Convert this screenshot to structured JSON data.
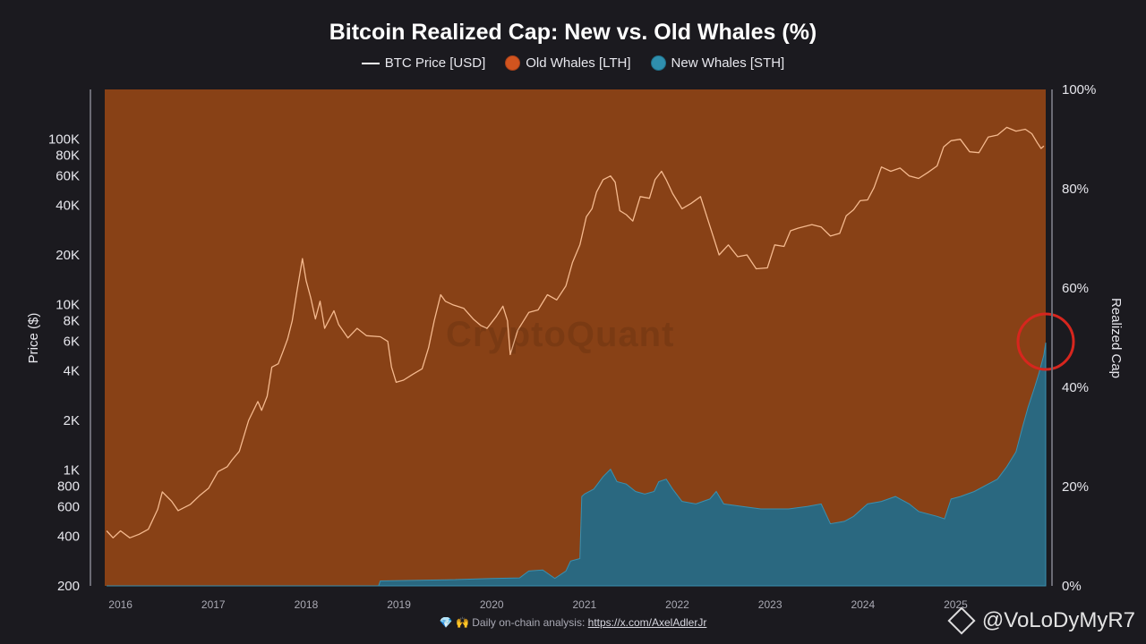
{
  "chart_data": {
    "type": "area",
    "title": "Bitcoin Realized Cap: New vs. Old Whales (%)",
    "legend": [
      {
        "label": "BTC Price [USD]",
        "kind": "line",
        "color": "#ffffff"
      },
      {
        "label": "Old Whales [LTH]",
        "kind": "dot",
        "color": "#d2541f"
      },
      {
        "label": "New Whales [STH]",
        "kind": "dot",
        "color": "#2f8fae"
      }
    ],
    "legend_position": "top-center",
    "ylabel_left": "Price ($)",
    "ylabel_right": "Realized Cap",
    "y_left_scale": "log",
    "y_left_range": [
      200,
      200000
    ],
    "y_left_ticks": [
      {
        "v": 200,
        "label": "200"
      },
      {
        "v": 400,
        "label": "400"
      },
      {
        "v": 600,
        "label": "600"
      },
      {
        "v": 800,
        "label": "800"
      },
      {
        "v": 1000,
        "label": "1K"
      },
      {
        "v": 2000,
        "label": "2K"
      },
      {
        "v": 4000,
        "label": "4K"
      },
      {
        "v": 6000,
        "label": "6K"
      },
      {
        "v": 8000,
        "label": "8K"
      },
      {
        "v": 10000,
        "label": "10K"
      },
      {
        "v": 20000,
        "label": "20K"
      },
      {
        "v": 40000,
        "label": "40K"
      },
      {
        "v": 60000,
        "label": "60K"
      },
      {
        "v": 80000,
        "label": "80K"
      },
      {
        "v": 100000,
        "label": "100K"
      }
    ],
    "y_right_range": [
      0,
      100
    ],
    "y_right_ticks": [
      {
        "v": 0,
        "label": "0%"
      },
      {
        "v": 20,
        "label": "20%"
      },
      {
        "v": 40,
        "label": "40%"
      },
      {
        "v": 60,
        "label": "60%"
      },
      {
        "v": 80,
        "label": "80%"
      },
      {
        "v": 100,
        "label": "100%"
      }
    ],
    "x_range": [
      2015.83,
      2025.97
    ],
    "x_ticks": [
      "2016",
      "2017",
      "2018",
      "2019",
      "2020",
      "2021",
      "2022",
      "2023",
      "2024",
      "2025"
    ],
    "grid": false,
    "series": [
      {
        "name": "BTC Price [USD]",
        "color": "#f5b98e",
        "axis": "left",
        "points": [
          [
            2015.85,
            430
          ],
          [
            2015.92,
            390
          ],
          [
            2016.0,
            430
          ],
          [
            2016.1,
            390
          ],
          [
            2016.2,
            410
          ],
          [
            2016.3,
            440
          ],
          [
            2016.4,
            580
          ],
          [
            2016.45,
            740
          ],
          [
            2016.55,
            650
          ],
          [
            2016.62,
            570
          ],
          [
            2016.75,
            620
          ],
          [
            2016.85,
            700
          ],
          [
            2016.95,
            780
          ],
          [
            2017.05,
            980
          ],
          [
            2017.15,
            1050
          ],
          [
            2017.2,
            1150
          ],
          [
            2017.28,
            1300
          ],
          [
            2017.38,
            2000
          ],
          [
            2017.48,
            2600
          ],
          [
            2017.52,
            2300
          ],
          [
            2017.58,
            2800
          ],
          [
            2017.63,
            4200
          ],
          [
            2017.7,
            4400
          ],
          [
            2017.75,
            5200
          ],
          [
            2017.8,
            6200
          ],
          [
            2017.85,
            8000
          ],
          [
            2017.9,
            12000
          ],
          [
            2017.96,
            19000
          ],
          [
            2018.0,
            14000
          ],
          [
            2018.05,
            11000
          ],
          [
            2018.1,
            8200
          ],
          [
            2018.15,
            10500
          ],
          [
            2018.2,
            7200
          ],
          [
            2018.3,
            9200
          ],
          [
            2018.35,
            7600
          ],
          [
            2018.45,
            6300
          ],
          [
            2018.55,
            7200
          ],
          [
            2018.65,
            6500
          ],
          [
            2018.8,
            6400
          ],
          [
            2018.88,
            6000
          ],
          [
            2018.92,
            4200
          ],
          [
            2018.97,
            3400
          ],
          [
            2019.05,
            3500
          ],
          [
            2019.15,
            3800
          ],
          [
            2019.25,
            4100
          ],
          [
            2019.32,
            5500
          ],
          [
            2019.38,
            8000
          ],
          [
            2019.45,
            11500
          ],
          [
            2019.5,
            10500
          ],
          [
            2019.58,
            10000
          ],
          [
            2019.7,
            9500
          ],
          [
            2019.8,
            8200
          ],
          [
            2019.88,
            7500
          ],
          [
            2019.95,
            7200
          ],
          [
            2020.05,
            8500
          ],
          [
            2020.12,
            9800
          ],
          [
            2020.17,
            8000
          ],
          [
            2020.2,
            5000
          ],
          [
            2020.28,
            7000
          ],
          [
            2020.4,
            9000
          ],
          [
            2020.5,
            9300
          ],
          [
            2020.6,
            11500
          ],
          [
            2020.7,
            10700
          ],
          [
            2020.8,
            13000
          ],
          [
            2020.87,
            18000
          ],
          [
            2020.95,
            23000
          ],
          [
            2021.02,
            34000
          ],
          [
            2021.08,
            38000
          ],
          [
            2021.13,
            48000
          ],
          [
            2021.2,
            57000
          ],
          [
            2021.28,
            60000
          ],
          [
            2021.33,
            55000
          ],
          [
            2021.38,
            37000
          ],
          [
            2021.45,
            35000
          ],
          [
            2021.52,
            32000
          ],
          [
            2021.6,
            45000
          ],
          [
            2021.7,
            44000
          ],
          [
            2021.76,
            57000
          ],
          [
            2021.83,
            64000
          ],
          [
            2021.88,
            57000
          ],
          [
            2021.95,
            47000
          ],
          [
            2022.05,
            38000
          ],
          [
            2022.15,
            41000
          ],
          [
            2022.25,
            45000
          ],
          [
            2022.35,
            30000
          ],
          [
            2022.45,
            20000
          ],
          [
            2022.55,
            23000
          ],
          [
            2022.65,
            19500
          ],
          [
            2022.75,
            20000
          ],
          [
            2022.85,
            16500
          ],
          [
            2022.97,
            16700
          ],
          [
            2023.05,
            23000
          ],
          [
            2023.15,
            22500
          ],
          [
            2023.22,
            28000
          ],
          [
            2023.3,
            29000
          ],
          [
            2023.45,
            30500
          ],
          [
            2023.55,
            29500
          ],
          [
            2023.65,
            26000
          ],
          [
            2023.75,
            27000
          ],
          [
            2023.82,
            34500
          ],
          [
            2023.9,
            37500
          ],
          [
            2023.97,
            42500
          ],
          [
            2024.05,
            43000
          ],
          [
            2024.12,
            51000
          ],
          [
            2024.2,
            68000
          ],
          [
            2024.3,
            64000
          ],
          [
            2024.4,
            67000
          ],
          [
            2024.5,
            60000
          ],
          [
            2024.6,
            58000
          ],
          [
            2024.7,
            63000
          ],
          [
            2024.8,
            69000
          ],
          [
            2024.87,
            90000
          ],
          [
            2024.95,
            98000
          ],
          [
            2025.05,
            100000
          ],
          [
            2025.15,
            84000
          ],
          [
            2025.25,
            83000
          ],
          [
            2025.35,
            103000
          ],
          [
            2025.45,
            106000
          ],
          [
            2025.55,
            118000
          ],
          [
            2025.65,
            112000
          ],
          [
            2025.75,
            115000
          ],
          [
            2025.82,
            108000
          ],
          [
            2025.88,
            95000
          ],
          [
            2025.92,
            88000
          ],
          [
            2025.95,
            91000
          ]
        ]
      },
      {
        "name": "New Whales [STH]",
        "color": "#2f8fae",
        "axis": "right",
        "points": [
          [
            2015.85,
            0.0
          ],
          [
            2018.78,
            0.0
          ],
          [
            2018.8,
            1.0
          ],
          [
            2019.5,
            1.2
          ],
          [
            2020.0,
            1.5
          ],
          [
            2020.3,
            1.6
          ],
          [
            2020.4,
            3.0
          ],
          [
            2020.55,
            3.2
          ],
          [
            2020.68,
            1.5
          ],
          [
            2020.8,
            3.0
          ],
          [
            2020.85,
            5.0
          ],
          [
            2020.95,
            5.5
          ],
          [
            2020.97,
            18.0
          ],
          [
            2021.0,
            18.5
          ],
          [
            2021.1,
            19.5
          ],
          [
            2021.2,
            22.0
          ],
          [
            2021.28,
            23.5
          ],
          [
            2021.35,
            21.0
          ],
          [
            2021.45,
            20.5
          ],
          [
            2021.55,
            19.0
          ],
          [
            2021.65,
            18.5
          ],
          [
            2021.75,
            19.0
          ],
          [
            2021.8,
            21.0
          ],
          [
            2021.88,
            21.5
          ],
          [
            2021.95,
            19.5
          ],
          [
            2022.05,
            17.0
          ],
          [
            2022.2,
            16.5
          ],
          [
            2022.35,
            17.5
          ],
          [
            2022.42,
            19.0
          ],
          [
            2022.5,
            16.5
          ],
          [
            2022.7,
            16.0
          ],
          [
            2022.9,
            15.5
          ],
          [
            2023.0,
            15.5
          ],
          [
            2023.2,
            15.5
          ],
          [
            2023.4,
            16.0
          ],
          [
            2023.55,
            16.5
          ],
          [
            2023.65,
            12.5
          ],
          [
            2023.8,
            13.0
          ],
          [
            2023.9,
            14.0
          ],
          [
            2024.05,
            16.5
          ],
          [
            2024.2,
            17.0
          ],
          [
            2024.35,
            18.0
          ],
          [
            2024.5,
            16.5
          ],
          [
            2024.6,
            15.0
          ],
          [
            2024.8,
            14.0
          ],
          [
            2024.88,
            13.5
          ],
          [
            2024.95,
            17.5
          ],
          [
            2025.05,
            18.0
          ],
          [
            2025.2,
            19.0
          ],
          [
            2025.35,
            20.5
          ],
          [
            2025.45,
            21.5
          ],
          [
            2025.55,
            24.0
          ],
          [
            2025.65,
            27.0
          ],
          [
            2025.72,
            32.0
          ],
          [
            2025.78,
            36.0
          ],
          [
            2025.85,
            40.0
          ],
          [
            2025.9,
            43.0
          ],
          [
            2025.95,
            46.5
          ],
          [
            2025.97,
            49.0
          ]
        ]
      },
      {
        "name": "Old Whales [LTH]",
        "color": "#d2541f",
        "axis": "right",
        "note_points": "fills remaining area to 100%"
      }
    ]
  },
  "footer": {
    "text": "Daily on-chain analysis:",
    "link": "https://x.com/AxelAdlerJr",
    "gem": "💎",
    "hands": "🙌"
  },
  "watermark": "CryptoQuant",
  "brand": "@VoLoDyMyR7",
  "annotation": {
    "shape": "circle",
    "color": "#d7261e"
  }
}
